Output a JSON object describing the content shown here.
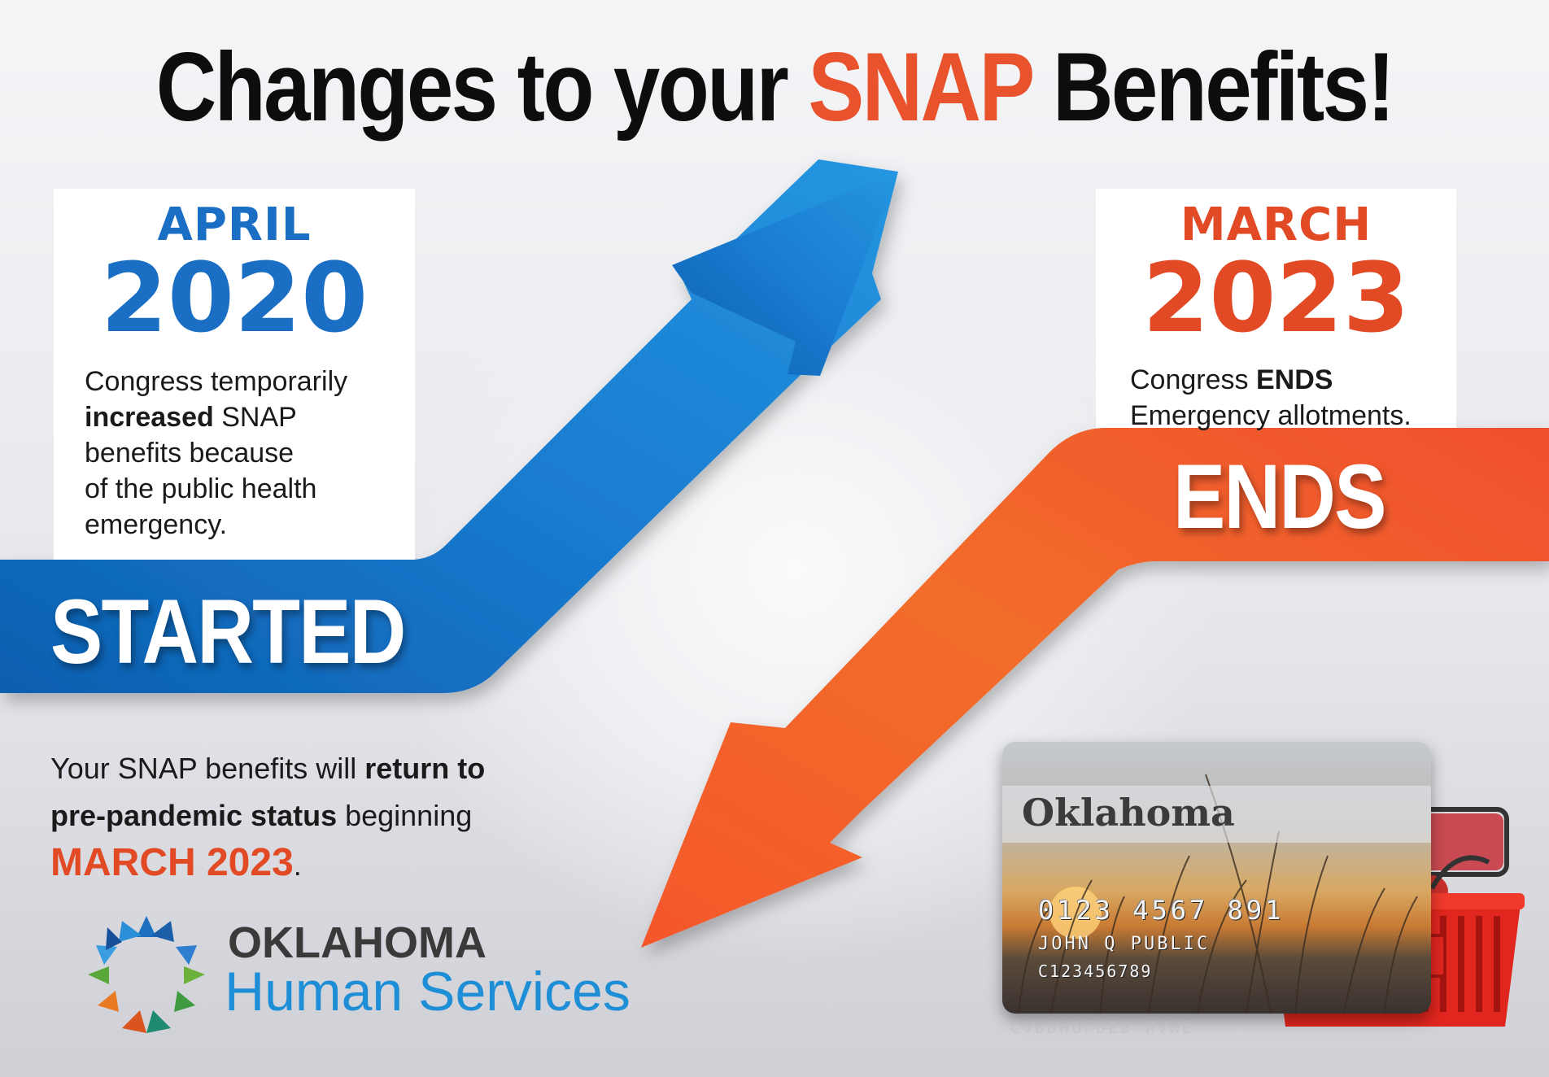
{
  "title": {
    "part1": "Changes to your",
    "highlight": "SNAP",
    "part2": "Benefits!"
  },
  "left_card": {
    "month": "APRIL",
    "year": "2020",
    "line1": "Congress temporarily",
    "bold": "increased",
    "line2_rest": " SNAP",
    "line3": "benefits because",
    "line4": "of the public health",
    "line5": "emergency."
  },
  "right_card": {
    "month": "MARCH",
    "year": "2023",
    "line1_pre": "Congress ",
    "line1_bold": "ENDS",
    "line2": "Emergency allotments."
  },
  "labels": {
    "started": "STARTED",
    "ends": "ENDS"
  },
  "bottom": {
    "pre": "Your SNAP benefits will ",
    "bold1": "return to",
    "bold2": "pre-pandemic status",
    "post": " beginning",
    "date": "MARCH 2023",
    "period": "."
  },
  "logo": {
    "line1": "OKLAHOMA",
    "line2": "Human Services"
  },
  "ebt_card": {
    "state": "Oklahoma",
    "number": "0123 4567 891",
    "holder": "JOHN Q PUBLIC",
    "id": "C123456789",
    "reflection": "CARDHOLDER NAME"
  },
  "colors": {
    "blue": "#1a6fc4",
    "orange": "#e24a25",
    "logo_blue": "#1e8fd6"
  },
  "icons": [
    "up-arrow-graphic",
    "down-arrow-graphic",
    "oklahoma-star-logo-icon",
    "grocery-basket-icon"
  ]
}
